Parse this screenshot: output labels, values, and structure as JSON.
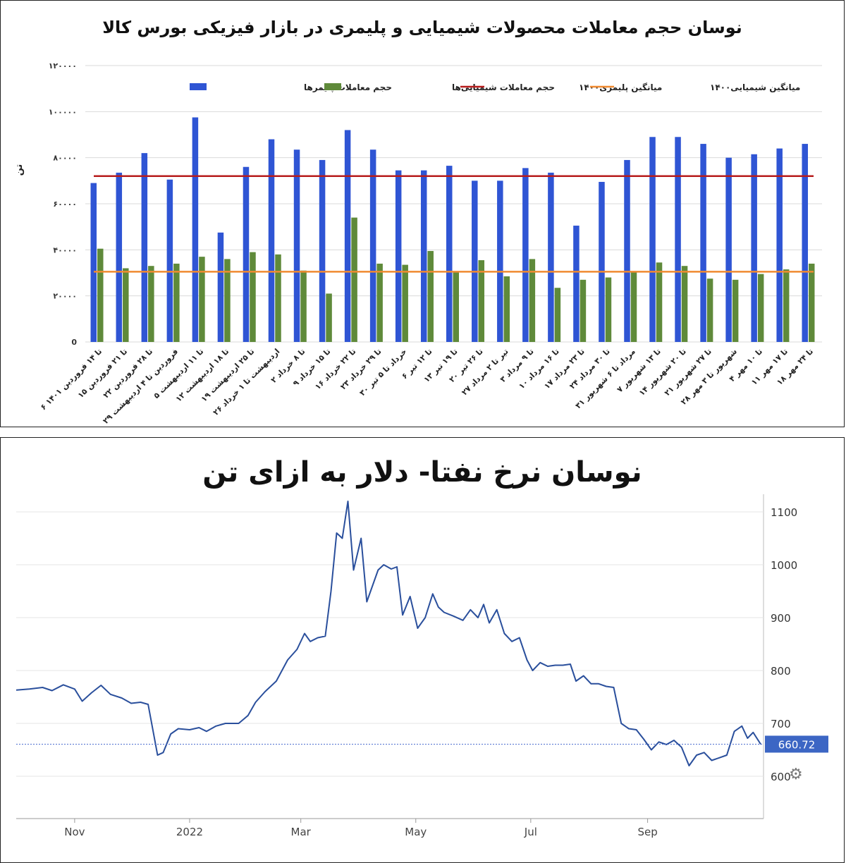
{
  "chart_data": [
    {
      "type": "bar",
      "title": "نوسان حجم معاملات محصولات شیمیایی و پلیمری در بازار فیزیکی بورس کالا",
      "ylabel": "تن",
      "ylim": [
        0,
        120000
      ],
      "yticks": [
        "0",
        "۲۰۰۰۰",
        "۴۰۰۰۰",
        "۶۰۰۰۰",
        "۸۰۰۰۰",
        "۱۰۰۰۰۰",
        "۱۲۰۰۰۰"
      ],
      "yticks_values": [
        0,
        20000,
        40000,
        60000,
        80000,
        100000,
        120000
      ],
      "grid": true,
      "legend": "top",
      "categories": [
        "۶ تا ۱۴ فروردین ۱۴۰۱",
        "۱۵ تا ۲۱ فروردین",
        "۲۲ تا ۲۸ فروردین",
        "۲۹ فروردین تا ۴ اردیبهشت",
        "۵ تا ۱۱ اردیبهشت",
        "۱۲ تا ۱۸ اردیبهشت",
        "۱۹ تا ۲۵ اردیبهشت",
        "۲۶ اردیبهشت تا ۱ خرداد",
        "۲ تا ۸ خرداد",
        "۹ تا ۱۵ خرداد",
        "۱۶ تا ۲۲ خرداد",
        "۲۳ تا ۲۹ خرداد",
        "۳۰ خرداد تا ۵ تیر",
        "۶ تا ۱۲ تیر",
        "۱۳ تا ۱۹ تیر",
        "۲۰ تا ۲۶ تیر",
        "۲۷ تیر تا ۲ مرداد",
        "۳ تا ۹ مرداد",
        "۱۰ تا ۱۶ مرداد",
        "۱۷ تا ۲۳ مرداد",
        "۲۴ تا ۳۰ مرداد",
        "۳۱ مرداد تا ۶ شهریور",
        "۷ تا ۱۳ شهریور",
        "۱۴ تا ۲۰ شهریور",
        "۲۱ تا ۲۷ شهریور",
        "۲۸ شهریور تا ۳ مهر",
        "۴ تا ۱۰ مهر",
        "۱۱ تا ۱۷ مهر",
        "۱۸ تا ۲۴ مهر"
      ],
      "series": [
        {
          "name": "حجم معاملات پلیمرها",
          "color": "#2f55d4",
          "values": [
            69000,
            73500,
            82000,
            70500,
            97500,
            47500,
            76000,
            88000,
            83500,
            79000,
            92000,
            83500,
            74500,
            74500,
            76500,
            70000,
            70000,
            75500,
            73500,
            50500,
            69500,
            79000,
            89000,
            89000,
            86000,
            80000,
            81500,
            84000,
            86000
          ]
        },
        {
          "name": "حجم معاملات شیمیایی‌ها",
          "color": "#5f8a3a",
          "values": [
            40500,
            32000,
            33000,
            34000,
            37000,
            36000,
            39000,
            38000,
            31000,
            21000,
            54000,
            34000,
            33500,
            39500,
            30500,
            35500,
            28500,
            36000,
            23500,
            27000,
            28000,
            30500,
            34500,
            33000,
            27500,
            27000,
            29500,
            31500,
            34000
          ]
        }
      ],
      "reference_lines": [
        {
          "name": "میانگین پلیمری۱۴۰۰",
          "color": "#b71c1c",
          "value": 72000
        },
        {
          "name": "میانگین شیمیایی۱۴۰۰",
          "color": "#f08a30",
          "value": 30500
        }
      ]
    },
    {
      "type": "line",
      "title": "نوسان نرخ نفتا- دلار به ازای تن",
      "ylim": [
        520,
        1120
      ],
      "yticks": [
        "600",
        "700",
        "800",
        "900",
        "1000",
        "1100"
      ],
      "yticks_values": [
        600,
        700,
        800,
        900,
        1000,
        1100
      ],
      "xticks": [
        "Nov",
        "2022",
        "Mar",
        "May",
        "Jul",
        "Sep"
      ],
      "xticks_values": [
        "2021-11-01",
        "2022-01-01",
        "2022-03-01",
        "2022-05-01",
        "2022-07-01",
        "2022-09-01"
      ],
      "xlim": [
        "2021-10-01",
        "2022-10-31"
      ],
      "grid": true,
      "last_value_label": "660.72",
      "series": [
        {
          "color": "#2a4f9c",
          "points": [
            [
              "2021-10-01",
              763
            ],
            [
              "2021-10-08",
              765
            ],
            [
              "2021-10-15",
              768
            ],
            [
              "2021-10-20",
              762
            ],
            [
              "2021-10-26",
              773
            ],
            [
              "2021-11-01",
              765
            ],
            [
              "2021-11-05",
              742
            ],
            [
              "2021-11-10",
              758
            ],
            [
              "2021-11-15",
              772
            ],
            [
              "2021-11-20",
              755
            ],
            [
              "2021-11-26",
              748
            ],
            [
              "2021-12-01",
              738
            ],
            [
              "2021-12-06",
              740
            ],
            [
              "2021-12-10",
              736
            ],
            [
              "2021-12-15",
              640
            ],
            [
              "2021-12-18",
              645
            ],
            [
              "2021-12-22",
              680
            ],
            [
              "2021-12-26",
              690
            ],
            [
              "2022-01-01",
              688
            ],
            [
              "2022-01-06",
              692
            ],
            [
              "2022-01-10",
              685
            ],
            [
              "2022-01-15",
              695
            ],
            [
              "2022-01-20",
              700
            ],
            [
              "2022-01-27",
              700
            ],
            [
              "2022-02-01",
              715
            ],
            [
              "2022-02-05",
              740
            ],
            [
              "2022-02-10",
              760
            ],
            [
              "2022-02-16",
              780
            ],
            [
              "2022-02-22",
              820
            ],
            [
              "2022-02-27",
              840
            ],
            [
              "2022-03-03",
              870
            ],
            [
              "2022-03-06",
              855
            ],
            [
              "2022-03-10",
              862
            ],
            [
              "2022-03-14",
              865
            ],
            [
              "2022-03-17",
              950
            ],
            [
              "2022-03-20",
              1060
            ],
            [
              "2022-03-23",
              1050
            ],
            [
              "2022-03-26",
              1120
            ],
            [
              "2022-03-29",
              990
            ],
            [
              "2022-04-02",
              1050
            ],
            [
              "2022-04-05",
              930
            ],
            [
              "2022-04-08",
              960
            ],
            [
              "2022-04-11",
              990
            ],
            [
              "2022-04-14",
              1000
            ],
            [
              "2022-04-18",
              992
            ],
            [
              "2022-04-21",
              996
            ],
            [
              "2022-04-24",
              905
            ],
            [
              "2022-04-28",
              940
            ],
            [
              "2022-05-02",
              880
            ],
            [
              "2022-05-06",
              900
            ],
            [
              "2022-05-10",
              945
            ],
            [
              "2022-05-13",
              920
            ],
            [
              "2022-05-16",
              910
            ],
            [
              "2022-05-21",
              903
            ],
            [
              "2022-05-26",
              895
            ],
            [
              "2022-05-30",
              915
            ],
            [
              "2022-06-03",
              900
            ],
            [
              "2022-06-06",
              925
            ],
            [
              "2022-06-09",
              890
            ],
            [
              "2022-06-13",
              915
            ],
            [
              "2022-06-17",
              870
            ],
            [
              "2022-06-21",
              855
            ],
            [
              "2022-06-25",
              862
            ],
            [
              "2022-06-29",
              820
            ],
            [
              "2022-07-02",
              800
            ],
            [
              "2022-07-06",
              815
            ],
            [
              "2022-07-10",
              808
            ],
            [
              "2022-07-14",
              810
            ],
            [
              "2022-07-18",
              810
            ],
            [
              "2022-07-22",
              812
            ],
            [
              "2022-07-25",
              780
            ],
            [
              "2022-07-29",
              790
            ],
            [
              "2022-08-02",
              775
            ],
            [
              "2022-08-06",
              775
            ],
            [
              "2022-08-10",
              770
            ],
            [
              "2022-08-14",
              768
            ],
            [
              "2022-08-18",
              700
            ],
            [
              "2022-08-22",
              690
            ],
            [
              "2022-08-26",
              688
            ],
            [
              "2022-08-30",
              670
            ],
            [
              "2022-09-03",
              650
            ],
            [
              "2022-09-07",
              665
            ],
            [
              "2022-09-11",
              660
            ],
            [
              "2022-09-15",
              668
            ],
            [
              "2022-09-19",
              655
            ],
            [
              "2022-09-23",
              620
            ],
            [
              "2022-09-27",
              640
            ],
            [
              "2022-10-01",
              645
            ],
            [
              "2022-10-05",
              630
            ],
            [
              "2022-10-09",
              635
            ],
            [
              "2022-10-13",
              640
            ],
            [
              "2022-10-17",
              685
            ],
            [
              "2022-10-21",
              695
            ],
            [
              "2022-10-24",
              672
            ],
            [
              "2022-10-27",
              683
            ],
            [
              "2022-10-31",
              660.72
            ]
          ]
        }
      ]
    }
  ]
}
